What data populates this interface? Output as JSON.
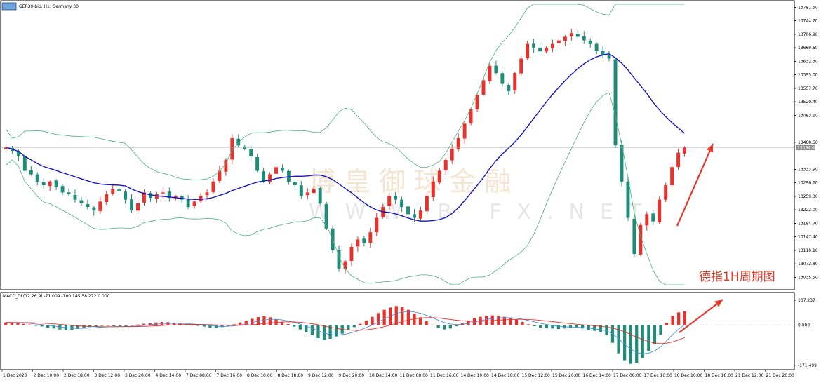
{
  "window": {
    "symbol_title": "GER30-bib, H1:  Germany 30",
    "macd_title": "MACD_DL(12,26,9) -71.009 -100.145 58.272 0.000"
  },
  "watermark": {
    "cn": "博 皇 御 球 金 融",
    "en": "WWW.B  FX.NET"
  },
  "annotation": {
    "text": "德指1H周期图",
    "color": "#e53a2a"
  },
  "colors": {
    "bull": "#e8312b",
    "bear": "#1f8c7a",
    "ma": "#1515c8",
    "band": "#49b27a",
    "macd_signal": "#e8312b",
    "macd_line": "#4a90d9",
    "grid": "#c8c8c8"
  },
  "chart_data": [
    {
      "type": "candlestick",
      "title": "GER30-bib, H1:  Germany 30",
      "price_axis": {
        "ticks": [
          "13781.50",
          "13744.20",
          "13706.90",
          "13669.60",
          "13632.30",
          "13595.00",
          "13557.70",
          "13520.40",
          "13483.10",
          "13408.50",
          "13333.90",
          "13296.60",
          "13259.30",
          "13222.00",
          "13184.70",
          "13147.40",
          "13110.10",
          "13072.80",
          "13035.50"
        ],
        "ylim": [
          13015,
          13790
        ],
        "current_price": "13394.60"
      },
      "time_axis": {
        "labels": [
          "1 Dec 2020",
          "2 Dec 10:00",
          "2 Dec 18:00",
          "3 Dec 12:00",
          "3 Dec 20:00",
          "4 Dec 14:00",
          "7 Dec 08:00",
          "7 Dec 16:00",
          "8 Dec 10:00",
          "8 Dec 18:00",
          "9 Dec 12:00",
          "9 Dec 20:00",
          "10 Dec 14:00",
          "11 Dec 08:00",
          "11 Dec 16:00",
          "14 Dec 10:00",
          "14 Dec 18:00",
          "15 Dec 12:00",
          "15 Dec 20:00",
          "16 Dec 14:00",
          "17 Dec 08:00",
          "17 Dec 16:00",
          "18 Dec 10:00",
          "18 Dec 18:00",
          "21 Dec 12:00",
          "21 Dec 20:00"
        ]
      },
      "close_path": [
        13395,
        13385,
        13370,
        13330,
        13320,
        13300,
        13290,
        13300,
        13285,
        13270,
        13265,
        13250,
        13240,
        13230,
        13220,
        13245,
        13265,
        13280,
        13275,
        13250,
        13220,
        13240,
        13270,
        13255,
        13265,
        13270,
        13255,
        13260,
        13250,
        13230,
        13245,
        13260,
        13270,
        13300,
        13330,
        13360,
        13420,
        13400,
        13390,
        13370,
        13330,
        13300,
        13320,
        13340,
        13330,
        13300,
        13290,
        13260,
        13270,
        13280,
        13240,
        13170,
        13110,
        13060,
        13080,
        13120,
        13140,
        13130,
        13160,
        13200,
        13230,
        13260,
        13250,
        13230,
        13210,
        13200,
        13220,
        13260,
        13300,
        13330,
        13360,
        13390,
        13420,
        13460,
        13500,
        13540,
        13580,
        13620,
        13600,
        13570,
        13550,
        13600,
        13640,
        13680,
        13670,
        13660,
        13670,
        13680,
        13690,
        13700,
        13710,
        13700,
        13690,
        13680,
        13660,
        13650,
        13640,
        13400,
        13300,
        13200,
        13100,
        13180,
        13210,
        13190,
        13250,
        13290,
        13340,
        13380,
        13395
      ]
    },
    {
      "type": "macd",
      "title": "MACD_DL(12,26,9) -71.009 -100.145 58.272 0.000",
      "axis": {
        "ticks": [
          "107.237",
          "0.000",
          "-171.499"
        ],
        "ylim": [
          -175,
          110
        ]
      },
      "histogram": [
        12,
        10,
        8,
        6,
        3,
        -2,
        -5,
        -10,
        -14,
        -18,
        -20,
        -19,
        -16,
        -12,
        -8,
        -5,
        -3,
        -2,
        -4,
        -6,
        -5,
        -2,
        3,
        6,
        9,
        12,
        14,
        13,
        10,
        7,
        4,
        1,
        -2,
        -6,
        -10,
        -12,
        -8,
        -3,
        4,
        12,
        20,
        28,
        35,
        38,
        34,
        25,
        15,
        5,
        -6,
        -18,
        -30,
        -42,
        -55,
        -62,
        -58,
        -48,
        -36,
        -22,
        -8,
        6,
        20,
        36,
        52,
        66,
        76,
        82,
        78,
        66,
        50,
        34,
        18,
        2,
        -12,
        -18,
        -14,
        -4,
        8,
        20,
        30,
        36,
        40,
        42,
        40,
        36,
        30,
        24,
        14,
        4,
        -4,
        -10,
        -12,
        -14,
        -16,
        -14,
        -12,
        -10,
        -14,
        -20,
        -24,
        -28,
        -40,
        -75,
        -120,
        -150,
        -165,
        -160,
        -140,
        -110,
        -80,
        -40,
        10,
        40,
        55,
        60
      ]
    }
  ]
}
